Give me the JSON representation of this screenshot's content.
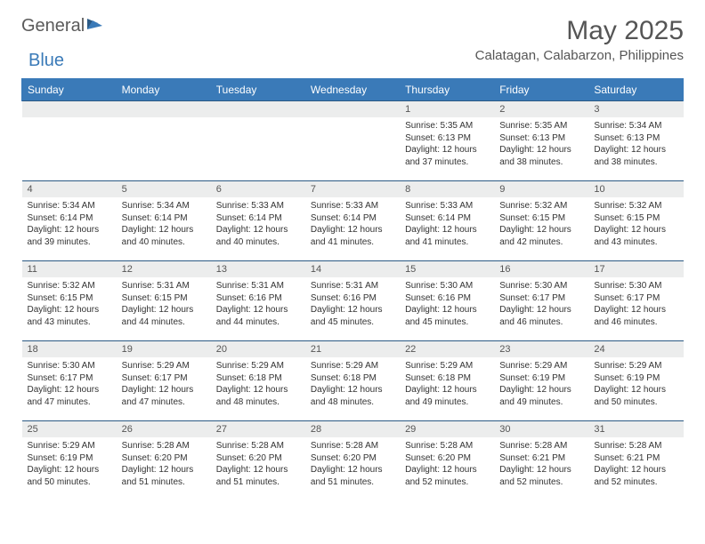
{
  "logo": {
    "word1": "General",
    "word2": "Blue"
  },
  "title": "May 2025",
  "location": "Calatagan, Calabarzon, Philippines",
  "colors": {
    "header_bg": "#3a7ab8",
    "header_text": "#ffffff",
    "daynum_bg": "#eceded",
    "border": "#2b5a85",
    "text": "#333333",
    "logo_gray": "#5a5a5a",
    "logo_blue": "#3a7ab8"
  },
  "weekdays": [
    "Sunday",
    "Monday",
    "Tuesday",
    "Wednesday",
    "Thursday",
    "Friday",
    "Saturday"
  ],
  "weeks": [
    [
      null,
      null,
      null,
      null,
      {
        "n": "1",
        "sr": "Sunrise: 5:35 AM",
        "ss": "Sunset: 6:13 PM",
        "d1": "Daylight: 12 hours",
        "d2": "and 37 minutes."
      },
      {
        "n": "2",
        "sr": "Sunrise: 5:35 AM",
        "ss": "Sunset: 6:13 PM",
        "d1": "Daylight: 12 hours",
        "d2": "and 38 minutes."
      },
      {
        "n": "3",
        "sr": "Sunrise: 5:34 AM",
        "ss": "Sunset: 6:13 PM",
        "d1": "Daylight: 12 hours",
        "d2": "and 38 minutes."
      }
    ],
    [
      {
        "n": "4",
        "sr": "Sunrise: 5:34 AM",
        "ss": "Sunset: 6:14 PM",
        "d1": "Daylight: 12 hours",
        "d2": "and 39 minutes."
      },
      {
        "n": "5",
        "sr": "Sunrise: 5:34 AM",
        "ss": "Sunset: 6:14 PM",
        "d1": "Daylight: 12 hours",
        "d2": "and 40 minutes."
      },
      {
        "n": "6",
        "sr": "Sunrise: 5:33 AM",
        "ss": "Sunset: 6:14 PM",
        "d1": "Daylight: 12 hours",
        "d2": "and 40 minutes."
      },
      {
        "n": "7",
        "sr": "Sunrise: 5:33 AM",
        "ss": "Sunset: 6:14 PM",
        "d1": "Daylight: 12 hours",
        "d2": "and 41 minutes."
      },
      {
        "n": "8",
        "sr": "Sunrise: 5:33 AM",
        "ss": "Sunset: 6:14 PM",
        "d1": "Daylight: 12 hours",
        "d2": "and 41 minutes."
      },
      {
        "n": "9",
        "sr": "Sunrise: 5:32 AM",
        "ss": "Sunset: 6:15 PM",
        "d1": "Daylight: 12 hours",
        "d2": "and 42 minutes."
      },
      {
        "n": "10",
        "sr": "Sunrise: 5:32 AM",
        "ss": "Sunset: 6:15 PM",
        "d1": "Daylight: 12 hours",
        "d2": "and 43 minutes."
      }
    ],
    [
      {
        "n": "11",
        "sr": "Sunrise: 5:32 AM",
        "ss": "Sunset: 6:15 PM",
        "d1": "Daylight: 12 hours",
        "d2": "and 43 minutes."
      },
      {
        "n": "12",
        "sr": "Sunrise: 5:31 AM",
        "ss": "Sunset: 6:15 PM",
        "d1": "Daylight: 12 hours",
        "d2": "and 44 minutes."
      },
      {
        "n": "13",
        "sr": "Sunrise: 5:31 AM",
        "ss": "Sunset: 6:16 PM",
        "d1": "Daylight: 12 hours",
        "d2": "and 44 minutes."
      },
      {
        "n": "14",
        "sr": "Sunrise: 5:31 AM",
        "ss": "Sunset: 6:16 PM",
        "d1": "Daylight: 12 hours",
        "d2": "and 45 minutes."
      },
      {
        "n": "15",
        "sr": "Sunrise: 5:30 AM",
        "ss": "Sunset: 6:16 PM",
        "d1": "Daylight: 12 hours",
        "d2": "and 45 minutes."
      },
      {
        "n": "16",
        "sr": "Sunrise: 5:30 AM",
        "ss": "Sunset: 6:17 PM",
        "d1": "Daylight: 12 hours",
        "d2": "and 46 minutes."
      },
      {
        "n": "17",
        "sr": "Sunrise: 5:30 AM",
        "ss": "Sunset: 6:17 PM",
        "d1": "Daylight: 12 hours",
        "d2": "and 46 minutes."
      }
    ],
    [
      {
        "n": "18",
        "sr": "Sunrise: 5:30 AM",
        "ss": "Sunset: 6:17 PM",
        "d1": "Daylight: 12 hours",
        "d2": "and 47 minutes."
      },
      {
        "n": "19",
        "sr": "Sunrise: 5:29 AM",
        "ss": "Sunset: 6:17 PM",
        "d1": "Daylight: 12 hours",
        "d2": "and 47 minutes."
      },
      {
        "n": "20",
        "sr": "Sunrise: 5:29 AM",
        "ss": "Sunset: 6:18 PM",
        "d1": "Daylight: 12 hours",
        "d2": "and 48 minutes."
      },
      {
        "n": "21",
        "sr": "Sunrise: 5:29 AM",
        "ss": "Sunset: 6:18 PM",
        "d1": "Daylight: 12 hours",
        "d2": "and 48 minutes."
      },
      {
        "n": "22",
        "sr": "Sunrise: 5:29 AM",
        "ss": "Sunset: 6:18 PM",
        "d1": "Daylight: 12 hours",
        "d2": "and 49 minutes."
      },
      {
        "n": "23",
        "sr": "Sunrise: 5:29 AM",
        "ss": "Sunset: 6:19 PM",
        "d1": "Daylight: 12 hours",
        "d2": "and 49 minutes."
      },
      {
        "n": "24",
        "sr": "Sunrise: 5:29 AM",
        "ss": "Sunset: 6:19 PM",
        "d1": "Daylight: 12 hours",
        "d2": "and 50 minutes."
      }
    ],
    [
      {
        "n": "25",
        "sr": "Sunrise: 5:29 AM",
        "ss": "Sunset: 6:19 PM",
        "d1": "Daylight: 12 hours",
        "d2": "and 50 minutes."
      },
      {
        "n": "26",
        "sr": "Sunrise: 5:28 AM",
        "ss": "Sunset: 6:20 PM",
        "d1": "Daylight: 12 hours",
        "d2": "and 51 minutes."
      },
      {
        "n": "27",
        "sr": "Sunrise: 5:28 AM",
        "ss": "Sunset: 6:20 PM",
        "d1": "Daylight: 12 hours",
        "d2": "and 51 minutes."
      },
      {
        "n": "28",
        "sr": "Sunrise: 5:28 AM",
        "ss": "Sunset: 6:20 PM",
        "d1": "Daylight: 12 hours",
        "d2": "and 51 minutes."
      },
      {
        "n": "29",
        "sr": "Sunrise: 5:28 AM",
        "ss": "Sunset: 6:20 PM",
        "d1": "Daylight: 12 hours",
        "d2": "and 52 minutes."
      },
      {
        "n": "30",
        "sr": "Sunrise: 5:28 AM",
        "ss": "Sunset: 6:21 PM",
        "d1": "Daylight: 12 hours",
        "d2": "and 52 minutes."
      },
      {
        "n": "31",
        "sr": "Sunrise: 5:28 AM",
        "ss": "Sunset: 6:21 PM",
        "d1": "Daylight: 12 hours",
        "d2": "and 52 minutes."
      }
    ]
  ]
}
